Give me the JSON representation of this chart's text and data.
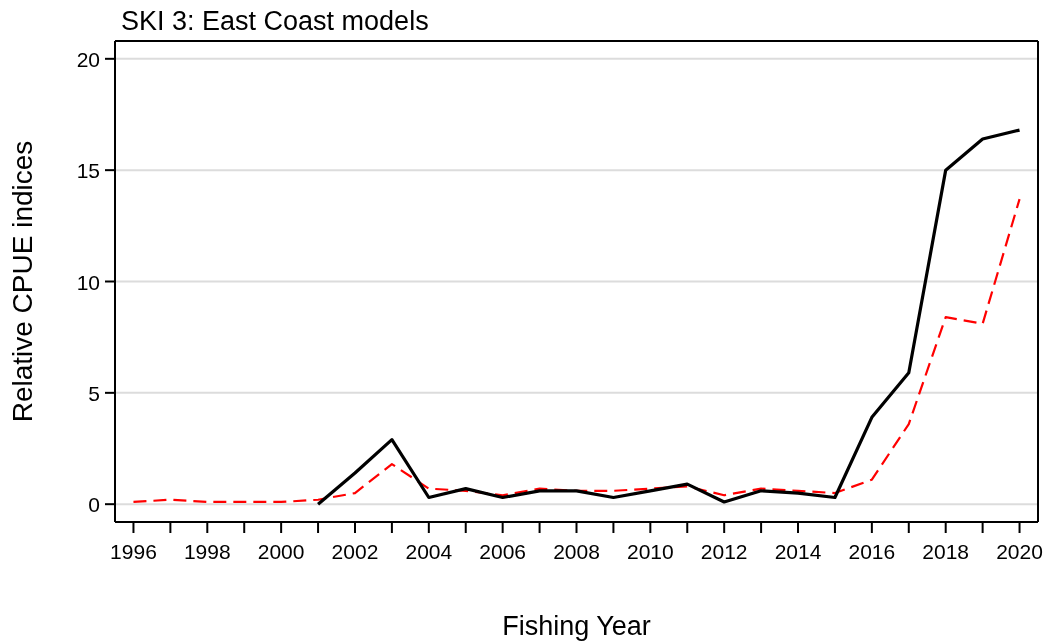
{
  "chart_data": {
    "type": "line",
    "title": "SKI 3: East Coast models",
    "xlabel": "Fishing Year",
    "ylabel": "Relative CPUE indices",
    "x": [
      1996,
      1997,
      1998,
      1999,
      2000,
      2001,
      2002,
      2003,
      2004,
      2005,
      2006,
      2007,
      2008,
      2009,
      2010,
      2011,
      2012,
      2013,
      2014,
      2015,
      2016,
      2017,
      2018,
      2019,
      2020
    ],
    "series": [
      {
        "color": "#ff0000",
        "line_style": "dashed",
        "values": [
          0.1,
          0.2,
          0.1,
          0.1,
          0.1,
          0.2,
          0.5,
          1.8,
          0.7,
          0.6,
          0.4,
          0.7,
          0.6,
          0.6,
          0.7,
          0.8,
          0.4,
          0.7,
          0.6,
          0.5,
          1.1,
          3.6,
          8.4,
          8.1,
          13.7
        ]
      },
      {
        "color": "#000000",
        "line_style": "solid",
        "values": [
          null,
          null,
          null,
          null,
          null,
          0.0,
          1.4,
          2.9,
          0.3,
          0.7,
          0.3,
          0.6,
          0.6,
          0.3,
          0.6,
          0.9,
          0.1,
          0.6,
          0.5,
          0.3,
          3.9,
          5.9,
          15.0,
          16.4,
          16.8
        ]
      }
    ],
    "xlim": [
      1995.5,
      2020.5
    ],
    "xticks": [
      1996,
      {
        "value": 1997,
        "label": null
      },
      1998,
      {
        "value": 1999,
        "label": null
      },
      2000,
      {
        "value": 2001,
        "label": null
      },
      2002,
      {
        "value": 2003,
        "label": null
      },
      2004,
      {
        "value": 2005,
        "label": null
      },
      2006,
      {
        "value": 2007,
        "label": null
      },
      2008,
      {
        "value": 2009,
        "label": null
      },
      2010,
      {
        "value": 2011,
        "label": null
      },
      2012,
      {
        "value": 2013,
        "label": null
      },
      2014,
      {
        "value": 2015,
        "label": null
      },
      2016,
      {
        "value": 2017,
        "label": null
      },
      2018,
      {
        "value": 2019,
        "label": null
      },
      2020
    ],
    "ylim": [
      -0.8,
      20.8
    ],
    "yticks": [
      0,
      5,
      10,
      15,
      20
    ],
    "grid": "y"
  }
}
